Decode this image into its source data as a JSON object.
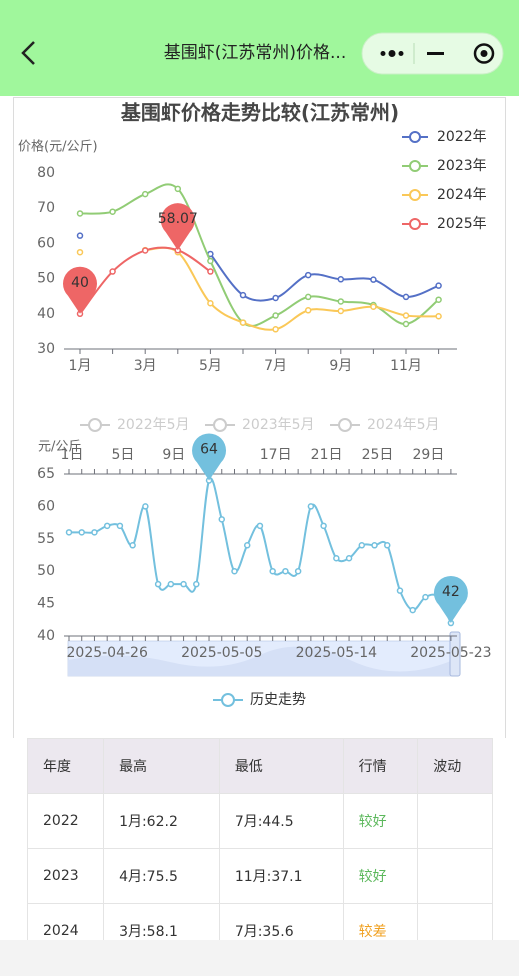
{
  "header": {
    "title": "基围虾(江苏常州)价格..."
  },
  "chart_data": [
    {
      "type": "line",
      "title": "基围虾价格走势比较(江苏常州)",
      "y_label": "价格(元/公斤)",
      "categories": [
        "1月",
        null,
        "3月",
        null,
        "5月",
        null,
        "7月",
        null,
        "9月",
        null,
        "11月",
        null
      ],
      "ylim": [
        30,
        80
      ],
      "yticks": [
        30,
        40,
        50,
        60,
        70,
        80
      ],
      "smooth": true,
      "legend": "top-right",
      "series": [
        {
          "name": "2022年",
          "color": "#5470c6",
          "values": [
            62.2,
            null,
            null,
            null,
            57,
            45.3,
            44.5,
            51,
            49.8,
            49.7,
            44.8,
            48
          ]
        },
        {
          "name": "2023年",
          "color": "#91cc75",
          "values": [
            68.5,
            69,
            74,
            75.5,
            55,
            37.5,
            39.5,
            44.8,
            43.5,
            42.5,
            37.1,
            44
          ]
        },
        {
          "name": "2024年",
          "color": "#fac858",
          "values": [
            57.5,
            null,
            58.1,
            57.5,
            43,
            37.5,
            35.6,
            41,
            40.8,
            42,
            39.5,
            39.3
          ]
        },
        {
          "name": "2025年",
          "color": "#ee6666",
          "mark_points": true,
          "values": [
            40,
            52,
            58,
            58.07,
            52,
            null,
            null,
            null,
            null,
            null,
            null,
            null
          ]
        }
      ]
    },
    {
      "type": "line",
      "y_label": "元/公斤",
      "categories": [
        null,
        null,
        null,
        "2025-04-26",
        null,
        null,
        null,
        null,
        null,
        null,
        null,
        null,
        "2025-05-05",
        null,
        null,
        null,
        null,
        null,
        null,
        null,
        null,
        "2025-05-14",
        null,
        null,
        null,
        null,
        null,
        null,
        null,
        null,
        "2025-05-23"
      ],
      "top_categories": [
        "1日",
        null,
        null,
        null,
        "5日",
        null,
        null,
        null,
        "9日",
        null,
        null,
        null,
        null,
        null,
        null,
        null,
        "17日",
        null,
        null,
        null,
        "21日",
        null,
        null,
        null,
        "25日",
        null,
        null,
        null,
        "29日",
        null,
        null
      ],
      "ylim": [
        40,
        65
      ],
      "yticks": [
        40,
        45,
        50,
        55,
        60,
        65
      ],
      "smooth": true,
      "series": [
        {
          "name": "2022年5月",
          "color": "#cccccc",
          "hidden": true
        },
        {
          "name": "2023年5月",
          "color": "#cccccc",
          "hidden": true
        },
        {
          "name": "2024年5月",
          "color": "#cccccc",
          "hidden": true
        },
        {
          "name": "历史走势",
          "color": "#73c0de",
          "mark_points": true,
          "values": [
            56,
            56,
            56,
            57,
            57,
            54,
            60,
            48,
            48,
            48,
            48,
            64,
            58,
            50,
            54,
            57,
            50,
            50,
            50,
            60,
            57,
            52,
            52,
            54,
            54,
            54,
            47,
            44,
            46,
            46,
            42
          ]
        }
      ]
    }
  ],
  "table": {
    "columns": [
      "年度",
      "最高",
      "最低",
      "行情",
      "波动"
    ],
    "rows": [
      [
        "2022",
        "1月:62.2",
        "7月:44.5",
        "较好",
        null
      ],
      [
        "2023",
        "4月:75.5",
        "11月:37.1",
        "较好",
        null
      ],
      [
        "2024",
        "3月:58.1",
        "7月:35.6",
        "较差",
        null
      ]
    ],
    "trend_colors": [
      "#5cb85c",
      "#5cb85c",
      "#f0a020"
    ]
  }
}
